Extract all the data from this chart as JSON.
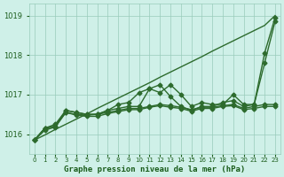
{
  "x": [
    0,
    1,
    2,
    3,
    4,
    5,
    6,
    7,
    8,
    9,
    10,
    11,
    12,
    13,
    14,
    15,
    16,
    17,
    18,
    19,
    20,
    21,
    22,
    23
  ],
  "line_straight": [
    1015.85,
    1015.98,
    1016.12,
    1016.25,
    1016.38,
    1016.51,
    1016.65,
    1016.78,
    1016.91,
    1017.04,
    1017.17,
    1017.3,
    1017.44,
    1017.57,
    1017.7,
    1017.83,
    1017.96,
    1018.1,
    1018.23,
    1018.36,
    1018.49,
    1018.62,
    1018.75,
    1019.0
  ],
  "line_wavy1": [
    1015.85,
    1016.15,
    1016.25,
    1016.6,
    1016.55,
    1016.5,
    1016.5,
    1016.6,
    1016.75,
    1016.8,
    1017.05,
    1017.15,
    1017.05,
    1017.25,
    1017.0,
    1016.7,
    1016.8,
    1016.75,
    1016.75,
    1017.0,
    1016.75,
    1016.75,
    1018.05,
    1018.95
  ],
  "line_wavy2": [
    1015.85,
    1016.15,
    1016.2,
    1016.6,
    1016.55,
    1016.5,
    1016.5,
    1016.6,
    1016.65,
    1016.7,
    1016.7,
    1017.15,
    1017.25,
    1016.95,
    1016.7,
    1016.6,
    1016.7,
    1016.7,
    1016.8,
    1016.85,
    1016.7,
    1016.75,
    1017.8,
    1018.85
  ],
  "line_flat": [
    1015.85,
    1016.15,
    1016.2,
    1016.55,
    1016.5,
    1016.48,
    1016.5,
    1016.55,
    1016.6,
    1016.65,
    1016.65,
    1016.7,
    1016.75,
    1016.72,
    1016.68,
    1016.62,
    1016.68,
    1016.68,
    1016.72,
    1016.75,
    1016.65,
    1016.7,
    1016.75,
    1016.75
  ],
  "line_flat2": [
    1015.85,
    1016.1,
    1016.18,
    1016.55,
    1016.48,
    1016.45,
    1016.45,
    1016.52,
    1016.57,
    1016.62,
    1016.62,
    1016.68,
    1016.72,
    1016.68,
    1016.65,
    1016.58,
    1016.65,
    1016.65,
    1016.7,
    1016.72,
    1016.62,
    1016.65,
    1016.7,
    1016.7
  ],
  "ylim": [
    1015.5,
    1019.3
  ],
  "xlim": [
    -0.5,
    23.5
  ],
  "yticks": [
    1016,
    1017,
    1018,
    1019
  ],
  "xticks": [
    0,
    1,
    2,
    3,
    4,
    5,
    6,
    7,
    8,
    9,
    10,
    11,
    12,
    13,
    14,
    15,
    16,
    17,
    18,
    19,
    20,
    21,
    22,
    23
  ],
  "bg_color": "#cff0e8",
  "grid_color": "#99ccbb",
  "line_color_straight": "#2d6b2d",
  "line_color": "#2d6b2d",
  "xlabel": "Graphe pression niveau de la mer (hPa)",
  "xlabel_color": "#1a5c1a",
  "tick_color": "#1a5c1a",
  "marker": "D",
  "markersize": 2.5,
  "linewidth": 1.0
}
